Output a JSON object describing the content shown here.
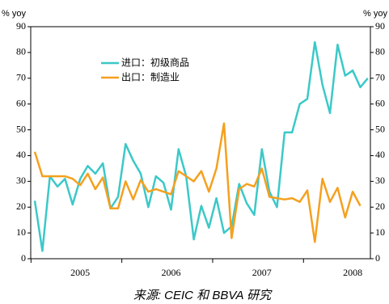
{
  "chart_data": {
    "type": "line",
    "y_label": "% yoy",
    "y2_label": "% yoy",
    "source": "来源: CEIC 和 BBVA 研究",
    "categories": [
      null,
      null,
      null,
      null,
      null,
      null,
      "2005",
      null,
      null,
      null,
      null,
      null,
      null,
      null,
      null,
      null,
      null,
      null,
      "2006",
      null,
      null,
      null,
      null,
      null,
      null,
      null,
      null,
      null,
      null,
      null,
      "2007",
      null,
      null,
      null,
      null,
      null,
      null,
      null,
      null,
      null,
      null,
      null,
      "2008",
      null,
      null
    ],
    "series": [
      {
        "name": "进口：初级商品",
        "color": "#3cc8c8",
        "values": [
          22.5,
          3,
          32,
          28,
          31,
          21,
          31,
          36,
          33,
          37,
          19.5,
          24,
          44.5,
          38,
          33,
          20,
          32,
          29.5,
          19,
          42.5,
          32,
          7.5,
          20.5,
          12,
          23.5,
          10,
          12.5,
          29,
          21.5,
          17,
          42.5,
          26,
          20,
          49,
          49,
          60,
          62,
          84,
          67.5,
          56.5,
          83,
          71,
          73,
          66.5,
          70
        ]
      },
      {
        "name": "出口：制造业",
        "color": "#f5a01e",
        "values": [
          41.5,
          32,
          32,
          32,
          32,
          31,
          28.5,
          33,
          27,
          31.5,
          19.5,
          19.5,
          30,
          23,
          30.5,
          26,
          27,
          26,
          25,
          34,
          32,
          30,
          34,
          26,
          35,
          52.5,
          8,
          27,
          29,
          28,
          35,
          24,
          23.5,
          23,
          23.5,
          22,
          26.5,
          6.5,
          31,
          22,
          27.5,
          16,
          26,
          20.5,
          null
        ]
      }
    ],
    "ylim": [
      0,
      90
    ],
    "yticks": [
      0,
      10,
      20,
      30,
      40,
      50,
      60,
      70,
      80,
      90
    ],
    "y2lim": [
      0,
      90
    ],
    "y2ticks": [
      0,
      10,
      20,
      30,
      40,
      50,
      60,
      70,
      80,
      90
    ]
  }
}
